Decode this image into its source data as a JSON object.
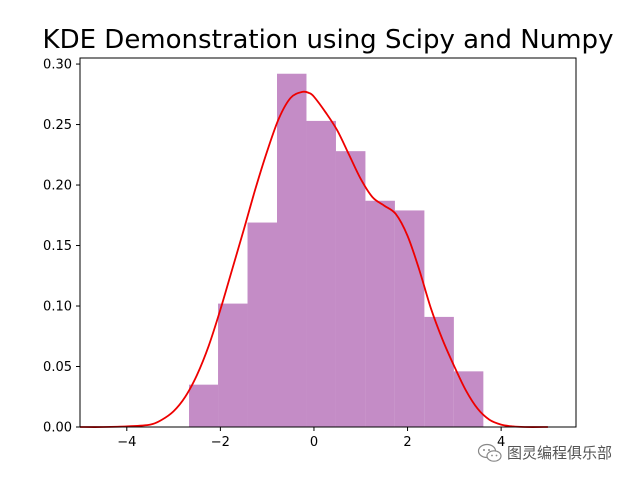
{
  "chart_data": {
    "type": "bar",
    "title": "KDE Demonstration using Scipy and Numpy",
    "xlabel": "",
    "ylabel": "",
    "xlim": [
      -5.0,
      5.6
    ],
    "ylim": [
      0,
      0.305
    ],
    "x_ticks": [
      -4,
      -2,
      0,
      2,
      4
    ],
    "x_tick_labels": [
      "−4",
      "−2",
      "0",
      "2",
      "4"
    ],
    "y_ticks": [
      0.0,
      0.05,
      0.1,
      0.15,
      0.2,
      0.25,
      0.3
    ],
    "y_tick_labels": [
      "0.00",
      "0.05",
      "0.10",
      "0.15",
      "0.20",
      "0.25",
      "0.30"
    ],
    "grid": false,
    "histogram": {
      "color": "#c48cc6",
      "bin_edges": [
        -2.67,
        -2.05,
        -1.42,
        -0.79,
        -0.16,
        0.47,
        1.1,
        1.73,
        2.36,
        2.99,
        3.62
      ],
      "density": [
        0.035,
        0.102,
        0.169,
        0.292,
        0.253,
        0.228,
        0.187,
        0.179,
        0.091,
        0.046
      ]
    },
    "kde": {
      "color": "#ee0000",
      "x": [
        -5.0,
        -4.5,
        -4.0,
        -3.5,
        -3.25,
        -3.0,
        -2.75,
        -2.5,
        -2.25,
        -2.0,
        -1.75,
        -1.5,
        -1.25,
        -1.0,
        -0.75,
        -0.5,
        -0.25,
        -0.1,
        0.0,
        0.25,
        0.5,
        0.75,
        1.0,
        1.25,
        1.5,
        1.75,
        2.0,
        2.25,
        2.5,
        2.75,
        3.0,
        3.25,
        3.5,
        3.75,
        4.0,
        4.25,
        4.5,
        5.0
      ],
      "y": [
        0.0,
        0.0,
        0.0005,
        0.002,
        0.006,
        0.013,
        0.025,
        0.043,
        0.067,
        0.097,
        0.13,
        0.163,
        0.197,
        0.228,
        0.255,
        0.272,
        0.277,
        0.276,
        0.273,
        0.26,
        0.245,
        0.225,
        0.205,
        0.19,
        0.183,
        0.176,
        0.158,
        0.13,
        0.098,
        0.072,
        0.05,
        0.03,
        0.015,
        0.006,
        0.002,
        0.0005,
        0.0,
        0.0
      ]
    }
  },
  "watermark": {
    "text": "图灵编程俱乐部",
    "icon": "wechat-icon"
  }
}
